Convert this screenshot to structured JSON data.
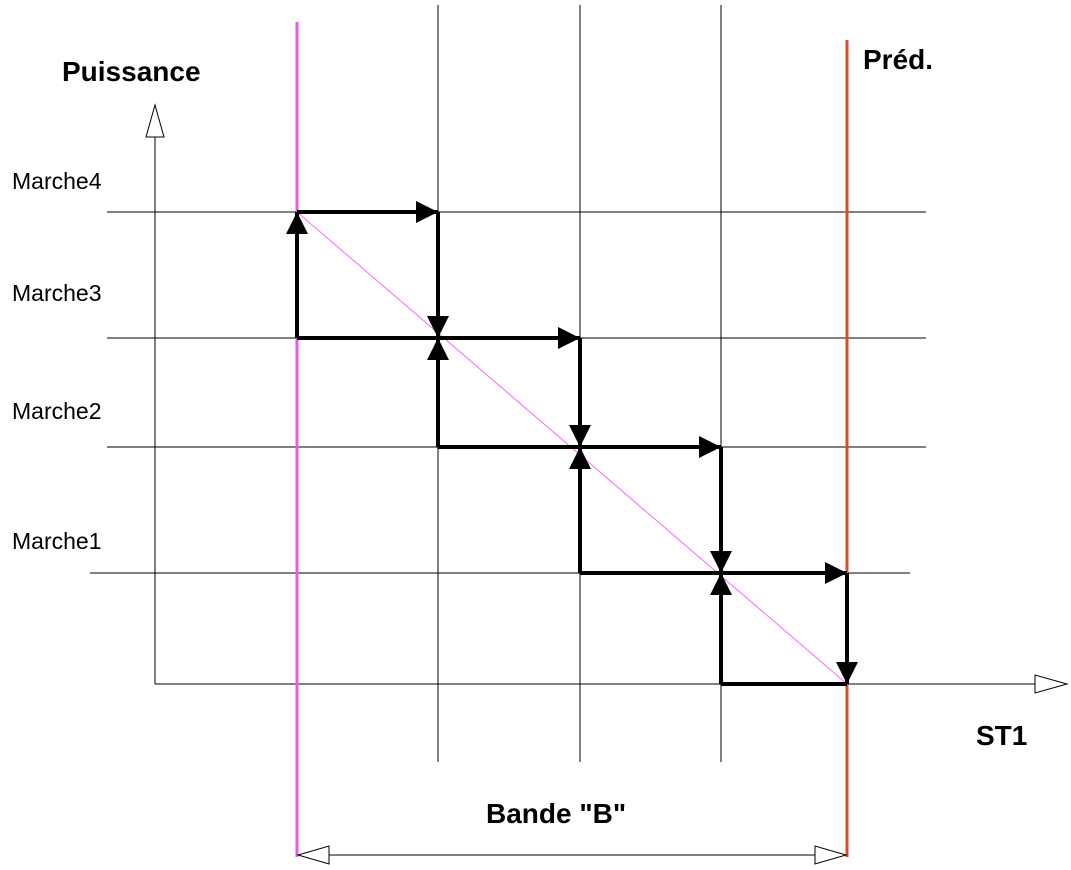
{
  "axes": {
    "y_label": "Puissance",
    "x_label": "ST1"
  },
  "setpoint_label": "Préd.",
  "band_label": "Bande \"B\"",
  "steps": [
    "Marche4",
    "Marche3",
    "Marche2",
    "Marche1"
  ],
  "colors": {
    "line": "#000000",
    "band_start": "#e65ce6",
    "setpoint": "#e04a2a",
    "diagonal": "#ff66ff",
    "grid": "#000000"
  }
}
